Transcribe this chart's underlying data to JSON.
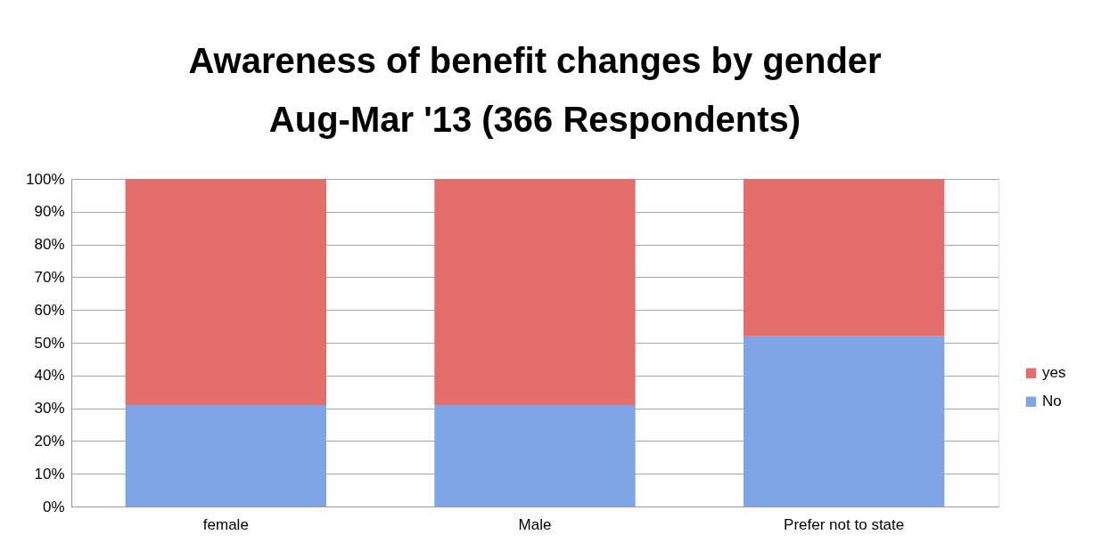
{
  "chart_data": {
    "type": "bar",
    "title": "Awareness of benefit changes by gender",
    "subtitle": "Aug-Mar '13 (366 Respondents)",
    "categories": [
      "female",
      "Male",
      "Prefer not to state"
    ],
    "series": [
      {
        "name": "No",
        "color": "#7ea6e6",
        "values": [
          31,
          31,
          52
        ]
      },
      {
        "name": "yes",
        "color": "#e46e6b",
        "values": [
          69,
          69,
          48
        ]
      }
    ],
    "stacked": true,
    "ylim": [
      0,
      100
    ],
    "yticks": [
      {
        "value": 0,
        "label": "0%"
      },
      {
        "value": 10,
        "label": "10%"
      },
      {
        "value": 20,
        "label": "20%"
      },
      {
        "value": 30,
        "label": "30%"
      },
      {
        "value": 40,
        "label": "40%"
      },
      {
        "value": 50,
        "label": "50%"
      },
      {
        "value": 60,
        "label": "60%"
      },
      {
        "value": 70,
        "label": "70%"
      },
      {
        "value": 80,
        "label": "80%"
      },
      {
        "value": 90,
        "label": "90%"
      },
      {
        "value": 100,
        "label": "100%"
      }
    ],
    "grid": "y",
    "legend": "right"
  }
}
